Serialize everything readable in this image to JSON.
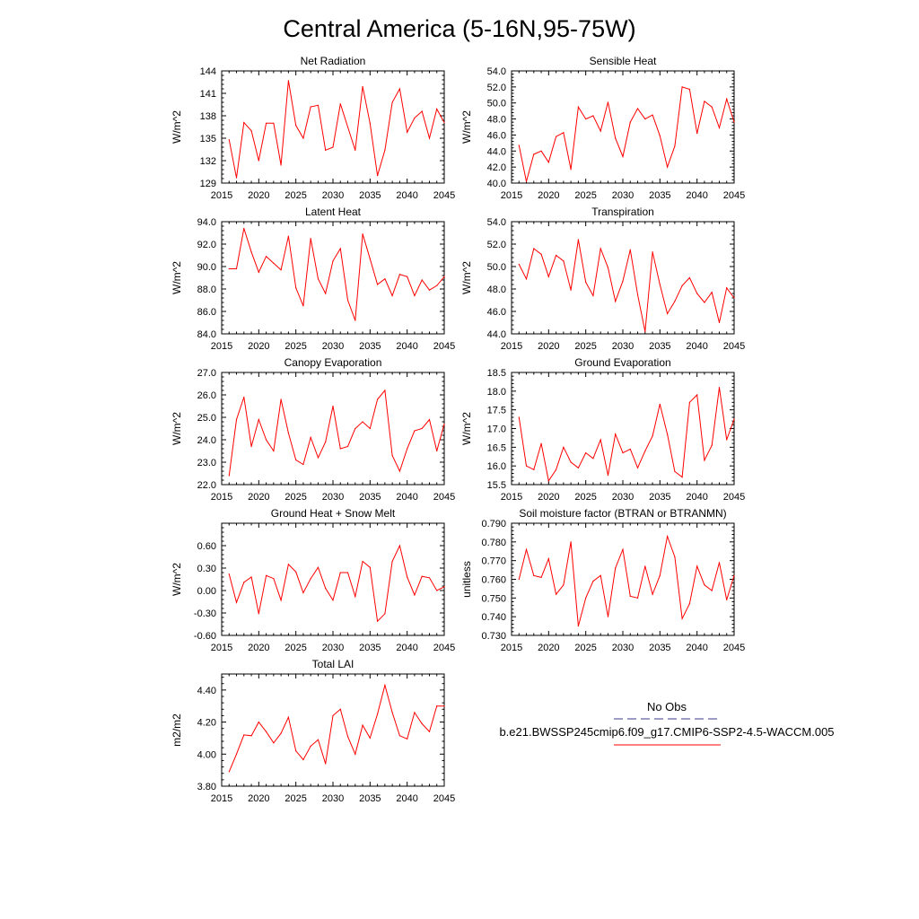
{
  "page_title": "Central America (5-16N,95-75W)",
  "legend": {
    "obs_label": "No Obs",
    "obs_color": "#3a3a8c",
    "model_label": "b.e21.BWSSP245cmip6.f09_g17.CMIP6-SSP2-4.5-WACCM.005",
    "model_color": "#ff0000"
  },
  "chart_data": [
    {
      "id": "net-radiation",
      "type": "line",
      "title": "Net Radiation",
      "ylabel": "W/m^2",
      "xlim": [
        2015,
        2045
      ],
      "ylim": [
        129,
        144
      ],
      "xticks": [
        2015,
        2020,
        2025,
        2030,
        2035,
        2040,
        2045
      ],
      "xtick_labels": [
        "2015",
        "2020",
        "2025",
        "2030",
        "2035",
        "2040",
        "2045"
      ],
      "yticks": [
        129,
        132,
        135,
        138,
        141,
        144
      ],
      "ytick_labels": [
        "129",
        "132",
        "135",
        "138",
        "141",
        "144"
      ],
      "x": [
        2016,
        2017,
        2018,
        2019,
        2020,
        2021,
        2022,
        2023,
        2024,
        2025,
        2026,
        2027,
        2028,
        2029,
        2030,
        2031,
        2032,
        2033,
        2034,
        2035,
        2036,
        2037,
        2038,
        2039,
        2040,
        2041,
        2042,
        2043,
        2044,
        2045
      ],
      "y": [
        134.8,
        129.7,
        137.1,
        136.0,
        132.0,
        137.0,
        137.0,
        131.4,
        142.7,
        136.7,
        135.0,
        139.2,
        139.4,
        133.4,
        133.8,
        139.6,
        136.5,
        133.4,
        141.9,
        137.0,
        130.0,
        133.4,
        139.8,
        141.6,
        135.8,
        137.7,
        138.6,
        135.0,
        138.9,
        137.1
      ],
      "series_color": "#ff0000"
    },
    {
      "id": "sensible-heat",
      "type": "line",
      "title": "Sensible Heat",
      "ylabel": "W/m^2",
      "xlim": [
        2015,
        2045
      ],
      "ylim": [
        40,
        54
      ],
      "xticks": [
        2015,
        2020,
        2025,
        2030,
        2035,
        2040,
        2045
      ],
      "xtick_labels": [
        "2015",
        "2020",
        "2025",
        "2030",
        "2035",
        "2040",
        "2045"
      ],
      "yticks": [
        40,
        42,
        44,
        46,
        48,
        50,
        52,
        54
      ],
      "ytick_labels": [
        "40.0",
        "42.0",
        "44.0",
        "46.0",
        "48.0",
        "50.0",
        "52.0",
        "54.0"
      ],
      "x": [
        2016,
        2017,
        2018,
        2019,
        2020,
        2021,
        2022,
        2023,
        2024,
        2025,
        2026,
        2027,
        2028,
        2029,
        2030,
        2031,
        2032,
        2033,
        2034,
        2035,
        2036,
        2037,
        2038,
        2039,
        2040,
        2041,
        2042,
        2043,
        2044,
        2045
      ],
      "y": [
        44.7,
        40.2,
        43.6,
        44.0,
        42.6,
        45.8,
        46.3,
        41.7,
        49.5,
        48.0,
        48.4,
        46.5,
        50.1,
        45.6,
        43.3,
        47.6,
        49.3,
        48.0,
        48.5,
        45.9,
        42.0,
        44.6,
        52.0,
        51.7,
        46.2,
        50.2,
        49.5,
        46.9,
        50.5,
        47.6
      ],
      "series_color": "#ff0000"
    },
    {
      "id": "latent-heat",
      "type": "line",
      "title": "Latent Heat",
      "ylabel": "W/m^2",
      "xlim": [
        2015,
        2045
      ],
      "ylim": [
        84,
        94
      ],
      "xticks": [
        2015,
        2020,
        2025,
        2030,
        2035,
        2040,
        2045
      ],
      "xtick_labels": [
        "2015",
        "2020",
        "2025",
        "2030",
        "2035",
        "2040",
        "2045"
      ],
      "yticks": [
        84,
        86,
        88,
        90,
        92,
        94
      ],
      "ytick_labels": [
        "84.0",
        "86.0",
        "88.0",
        "90.0",
        "92.0",
        "94.0"
      ],
      "x": [
        2016,
        2017,
        2018,
        2019,
        2020,
        2021,
        2022,
        2023,
        2024,
        2025,
        2026,
        2027,
        2028,
        2029,
        2030,
        2031,
        2032,
        2033,
        2034,
        2035,
        2036,
        2037,
        2038,
        2039,
        2040,
        2041,
        2042,
        2043,
        2044,
        2045
      ],
      "y": [
        89.8,
        89.8,
        93.4,
        91.3,
        89.5,
        90.9,
        90.3,
        89.7,
        92.7,
        88.1,
        86.5,
        92.5,
        88.9,
        87.6,
        90.5,
        91.6,
        87.0,
        85.2,
        92.9,
        90.7,
        88.4,
        88.9,
        87.4,
        89.3,
        89.1,
        87.4,
        88.8,
        87.9,
        88.3,
        89.1
      ],
      "series_color": "#ff0000"
    },
    {
      "id": "transpiration",
      "type": "line",
      "title": "Transpiration",
      "ylabel": "W/m^2",
      "xlim": [
        2015,
        2045
      ],
      "ylim": [
        44,
        54
      ],
      "xticks": [
        2015,
        2020,
        2025,
        2030,
        2035,
        2040,
        2045
      ],
      "xtick_labels": [
        "2015",
        "2020",
        "2025",
        "2030",
        "2035",
        "2040",
        "2045"
      ],
      "yticks": [
        44,
        46,
        48,
        50,
        52,
        54
      ],
      "ytick_labels": [
        "44.0",
        "46.0",
        "48.0",
        "50.0",
        "52.0",
        "54.0"
      ],
      "x": [
        2016,
        2017,
        2018,
        2019,
        2020,
        2021,
        2022,
        2023,
        2024,
        2025,
        2026,
        2027,
        2028,
        2029,
        2030,
        2031,
        2032,
        2033,
        2034,
        2035,
        2036,
        2037,
        2038,
        2039,
        2040,
        2041,
        2042,
        2043,
        2044,
        2045
      ],
      "y": [
        50.2,
        48.9,
        51.6,
        51.1,
        49.1,
        51.0,
        50.5,
        47.9,
        52.4,
        48.6,
        47.4,
        51.6,
        49.9,
        46.9,
        48.7,
        51.5,
        47.5,
        44.2,
        51.3,
        48.4,
        45.8,
        46.9,
        48.3,
        49.0,
        47.6,
        46.8,
        47.7,
        45.0,
        48.1,
        47.2
      ],
      "series_color": "#ff0000"
    },
    {
      "id": "canopy-evaporation",
      "type": "line",
      "title": "Canopy Evaporation",
      "ylabel": "W/m^2",
      "xlim": [
        2015,
        2045
      ],
      "ylim": [
        22,
        27
      ],
      "xticks": [
        2015,
        2020,
        2025,
        2030,
        2035,
        2040,
        2045
      ],
      "xtick_labels": [
        "2015",
        "2020",
        "2025",
        "2030",
        "2035",
        "2040",
        "2045"
      ],
      "yticks": [
        22,
        23,
        24,
        25,
        26,
        27
      ],
      "ytick_labels": [
        "22.0",
        "23.0",
        "24.0",
        "25.0",
        "26.0",
        "27.0"
      ],
      "x": [
        2016,
        2017,
        2018,
        2019,
        2020,
        2021,
        2022,
        2023,
        2024,
        2025,
        2026,
        2027,
        2028,
        2029,
        2030,
        2031,
        2032,
        2033,
        2034,
        2035,
        2036,
        2037,
        2038,
        2039,
        2040,
        2041,
        2042,
        2043,
        2044,
        2045
      ],
      "y": [
        22.4,
        24.9,
        25.9,
        23.7,
        24.9,
        24.0,
        23.5,
        25.8,
        24.3,
        23.1,
        22.9,
        24.1,
        23.2,
        23.9,
        25.5,
        23.6,
        23.7,
        24.5,
        24.8,
        24.5,
        25.8,
        26.2,
        23.3,
        22.6,
        23.6,
        24.4,
        24.5,
        24.9,
        23.5,
        24.7
      ],
      "series_color": "#ff0000"
    },
    {
      "id": "ground-evaporation",
      "type": "line",
      "title": "Ground Evaporation",
      "ylabel": "W/m^2",
      "xlim": [
        2015,
        2045
      ],
      "ylim": [
        15.5,
        18.5
      ],
      "xticks": [
        2015,
        2020,
        2025,
        2030,
        2035,
        2040,
        2045
      ],
      "xtick_labels": [
        "2015",
        "2020",
        "2025",
        "2030",
        "2035",
        "2040",
        "2045"
      ],
      "yticks": [
        15.5,
        16.0,
        16.5,
        17.0,
        17.5,
        18.0,
        18.5
      ],
      "ytick_labels": [
        "15.5",
        "16.0",
        "16.5",
        "17.0",
        "17.5",
        "18.0",
        "18.5"
      ],
      "x": [
        2016,
        2017,
        2018,
        2019,
        2020,
        2021,
        2022,
        2023,
        2024,
        2025,
        2026,
        2027,
        2028,
        2029,
        2030,
        2031,
        2032,
        2033,
        2034,
        2035,
        2036,
        2037,
        2038,
        2039,
        2040,
        2041,
        2042,
        2043,
        2044,
        2045
      ],
      "y": [
        17.3,
        16.0,
        15.9,
        16.6,
        15.6,
        15.9,
        16.5,
        16.1,
        15.95,
        16.35,
        16.2,
        16.7,
        15.75,
        16.85,
        16.35,
        16.45,
        15.95,
        16.4,
        16.8,
        17.65,
        16.85,
        15.85,
        15.7,
        17.7,
        17.9,
        16.15,
        16.55,
        18.1,
        16.7,
        17.25
      ],
      "series_color": "#ff0000"
    },
    {
      "id": "ground-heat-snow-melt",
      "type": "line",
      "title": "Ground Heat + Snow Melt",
      "ylabel": "W/m^2",
      "xlim": [
        2015,
        2045
      ],
      "ylim": [
        -0.6,
        0.9
      ],
      "xticks": [
        2015,
        2020,
        2025,
        2030,
        2035,
        2040,
        2045
      ],
      "xtick_labels": [
        "2015",
        "2020",
        "2025",
        "2030",
        "2035",
        "2040",
        "2045"
      ],
      "yticks": [
        -0.6,
        -0.3,
        0.0,
        0.3,
        0.6
      ],
      "ytick_labels": [
        "-0.60",
        "-0.30",
        "0.00",
        "0.30",
        "0.60"
      ],
      "x": [
        2016,
        2017,
        2018,
        2019,
        2020,
        2021,
        2022,
        2023,
        2024,
        2025,
        2026,
        2027,
        2028,
        2029,
        2030,
        2031,
        2032,
        2033,
        2034,
        2035,
        2036,
        2037,
        2038,
        2039,
        2040,
        2041,
        2042,
        2043,
        2044,
        2045
      ],
      "y": [
        0.22,
        -0.16,
        0.11,
        0.18,
        -0.31,
        0.2,
        0.16,
        -0.13,
        0.35,
        0.25,
        -0.03,
        0.16,
        0.31,
        0.03,
        -0.13,
        0.24,
        0.24,
        -0.08,
        0.39,
        0.31,
        -0.41,
        -0.31,
        0.39,
        0.6,
        0.18,
        -0.06,
        0.19,
        0.17,
        0.0,
        0.05
      ],
      "series_color": "#ff0000"
    },
    {
      "id": "soil-moisture-factor",
      "type": "line",
      "title": "Soil moisture factor (BTRAN or BTRANMN)",
      "ylabel": "unitless",
      "xlim": [
        2015,
        2045
      ],
      "ylim": [
        0.73,
        0.79
      ],
      "xticks": [
        2015,
        2020,
        2025,
        2030,
        2035,
        2040,
        2045
      ],
      "xtick_labels": [
        "2015",
        "2020",
        "2025",
        "2030",
        "2035",
        "2040",
        "2045"
      ],
      "yticks": [
        0.73,
        0.74,
        0.75,
        0.76,
        0.77,
        0.78,
        0.79
      ],
      "ytick_labels": [
        "0.730",
        "0.740",
        "0.750",
        "0.760",
        "0.770",
        "0.780",
        "0.790"
      ],
      "x": [
        2016,
        2017,
        2018,
        2019,
        2020,
        2021,
        2022,
        2023,
        2024,
        2025,
        2026,
        2027,
        2028,
        2029,
        2030,
        2031,
        2032,
        2033,
        2034,
        2035,
        2036,
        2037,
        2038,
        2039,
        2040,
        2041,
        2042,
        2043,
        2044,
        2045
      ],
      "y": [
        0.76,
        0.776,
        0.762,
        0.761,
        0.771,
        0.752,
        0.757,
        0.78,
        0.735,
        0.75,
        0.759,
        0.762,
        0.74,
        0.766,
        0.776,
        0.751,
        0.75,
        0.767,
        0.752,
        0.762,
        0.783,
        0.772,
        0.739,
        0.747,
        0.767,
        0.757,
        0.754,
        0.769,
        0.749,
        0.762
      ],
      "series_color": "#ff0000"
    },
    {
      "id": "total-lai",
      "type": "line",
      "title": "Total LAI",
      "ylabel": "m2/m2",
      "xlim": [
        2015,
        2045
      ],
      "ylim": [
        3.8,
        4.5
      ],
      "xticks": [
        2015,
        2020,
        2025,
        2030,
        2035,
        2040,
        2045
      ],
      "xtick_labels": [
        "2015",
        "2020",
        "2025",
        "2030",
        "2035",
        "2040",
        "2045"
      ],
      "yticks": [
        3.8,
        4.0,
        4.2,
        4.4
      ],
      "ytick_labels": [
        "3.80",
        "4.00",
        "4.20",
        "4.40"
      ],
      "x": [
        2016,
        2017,
        2018,
        2019,
        2020,
        2021,
        2022,
        2023,
        2024,
        2025,
        2026,
        2027,
        2028,
        2029,
        2030,
        2031,
        2032,
        2033,
        2034,
        2035,
        2036,
        2037,
        2038,
        2039,
        2040,
        2041,
        2042,
        2043,
        2044,
        2045
      ],
      "y": [
        3.89,
        4.0,
        4.12,
        4.115,
        4.2,
        4.14,
        4.07,
        4.13,
        4.23,
        4.02,
        3.965,
        4.05,
        4.09,
        3.94,
        4.24,
        4.28,
        4.11,
        4.0,
        4.18,
        4.1,
        4.25,
        4.43,
        4.26,
        4.115,
        4.095,
        4.26,
        4.19,
        4.14,
        4.3,
        4.3
      ],
      "series_color": "#ff0000"
    }
  ]
}
